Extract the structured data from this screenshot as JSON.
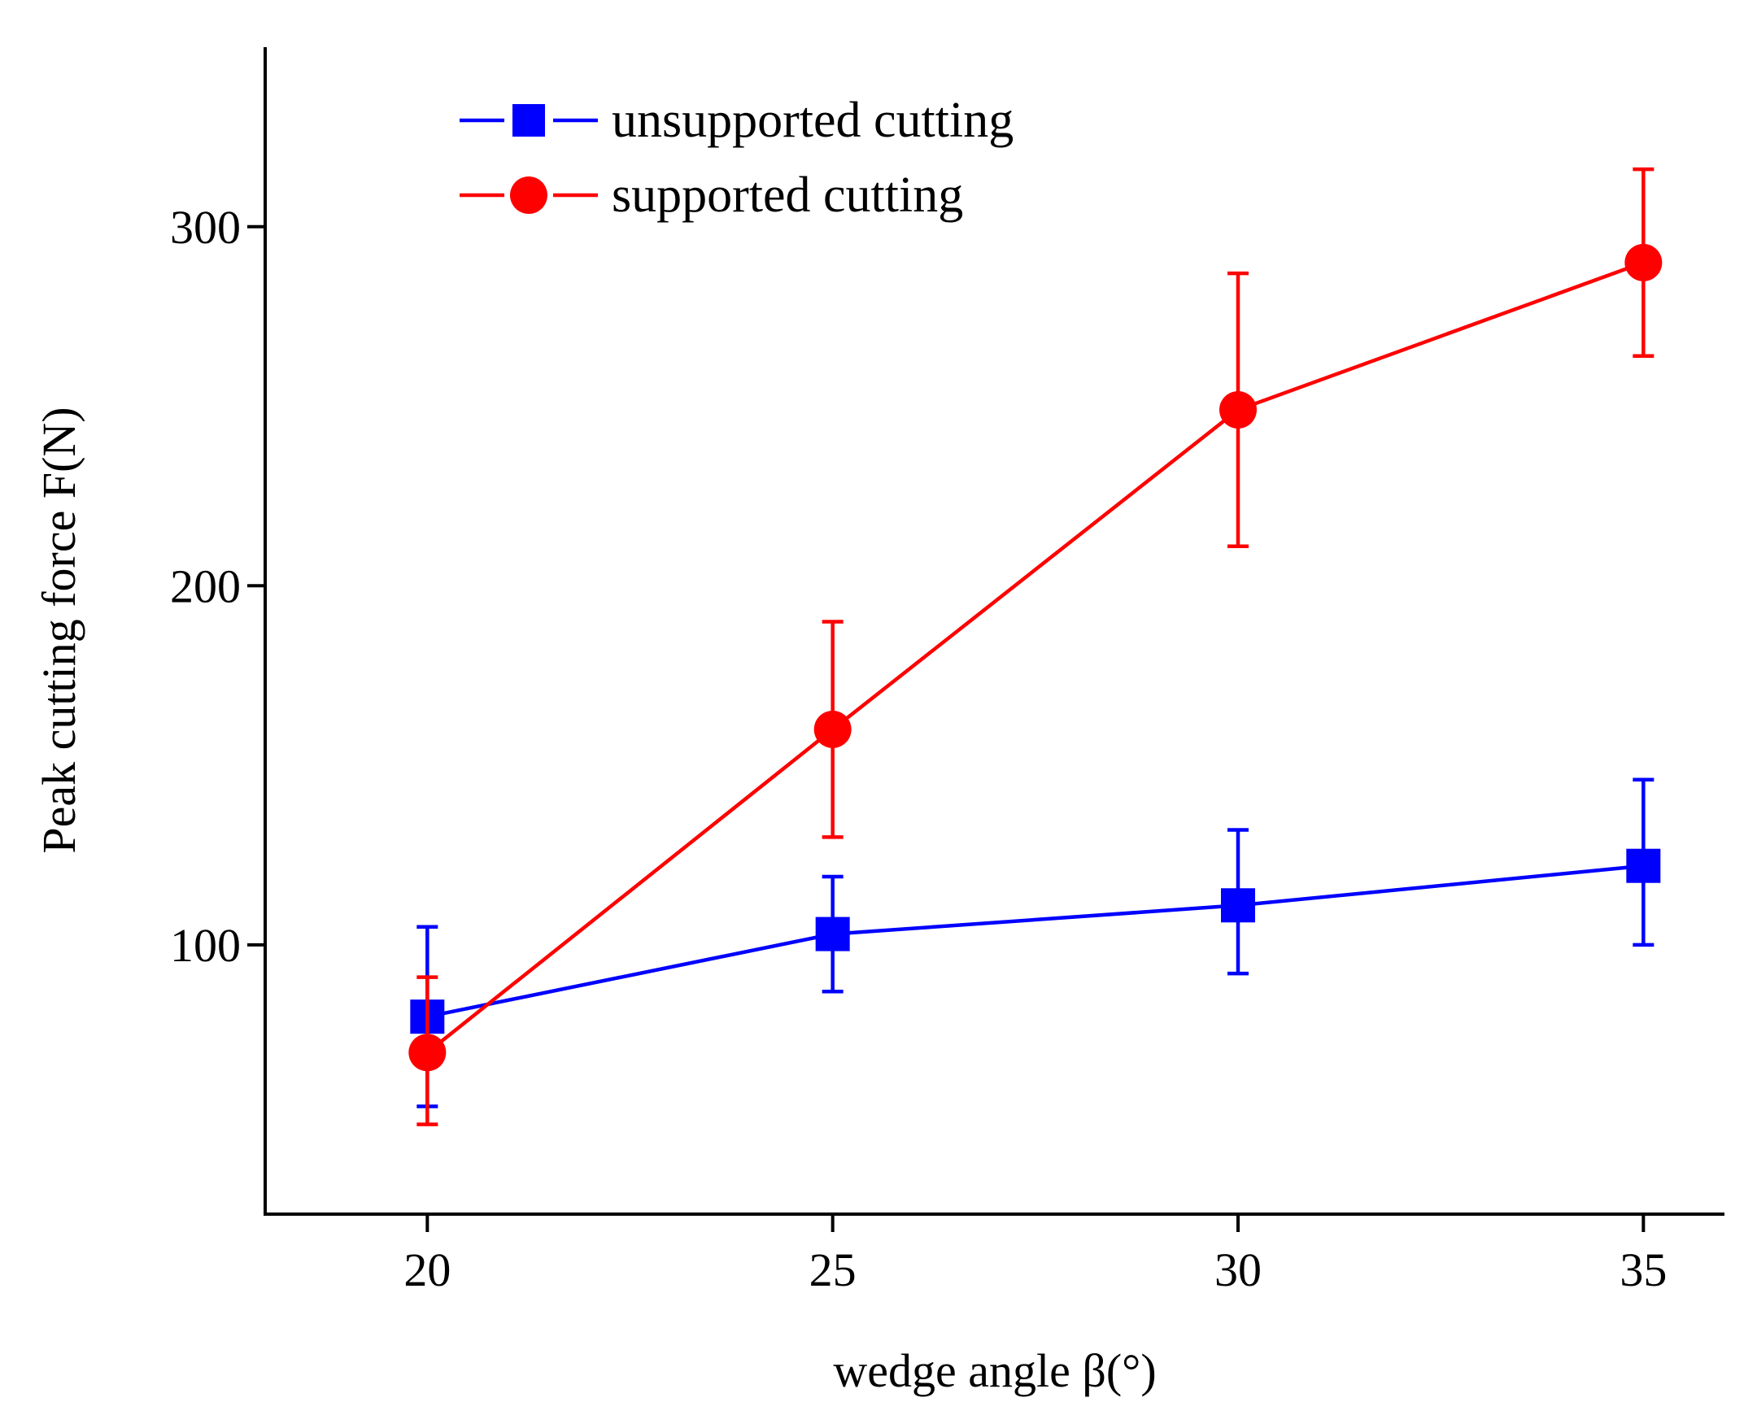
{
  "chart_data": {
    "type": "line",
    "title": "",
    "xlabel": "wedge angle β(°)",
    "ylabel": "Peak cutting force F(N)",
    "xlim": [
      18,
      36
    ],
    "ylim": [
      25,
      350
    ],
    "x": [
      20,
      25,
      30,
      35
    ],
    "xticks": [
      "20",
      "25",
      "30",
      "35"
    ],
    "yticks": [
      "100",
      "200",
      "300"
    ],
    "legend_position": "top-left",
    "grid": false,
    "series": [
      {
        "name": "unsupported cutting",
        "marker": "square",
        "color": "#0000ff",
        "values": [
          80,
          103,
          111,
          122
        ],
        "error_upper": [
          105,
          119,
          132,
          146
        ],
        "error_lower": [
          55,
          87,
          92,
          100
        ]
      },
      {
        "name": "supported cutting",
        "marker": "circle",
        "color": "#ff0000",
        "values": [
          70,
          160,
          249,
          290
        ],
        "error_upper": [
          91,
          190,
          287,
          316
        ],
        "error_lower": [
          50,
          130,
          211,
          264
        ]
      }
    ]
  }
}
